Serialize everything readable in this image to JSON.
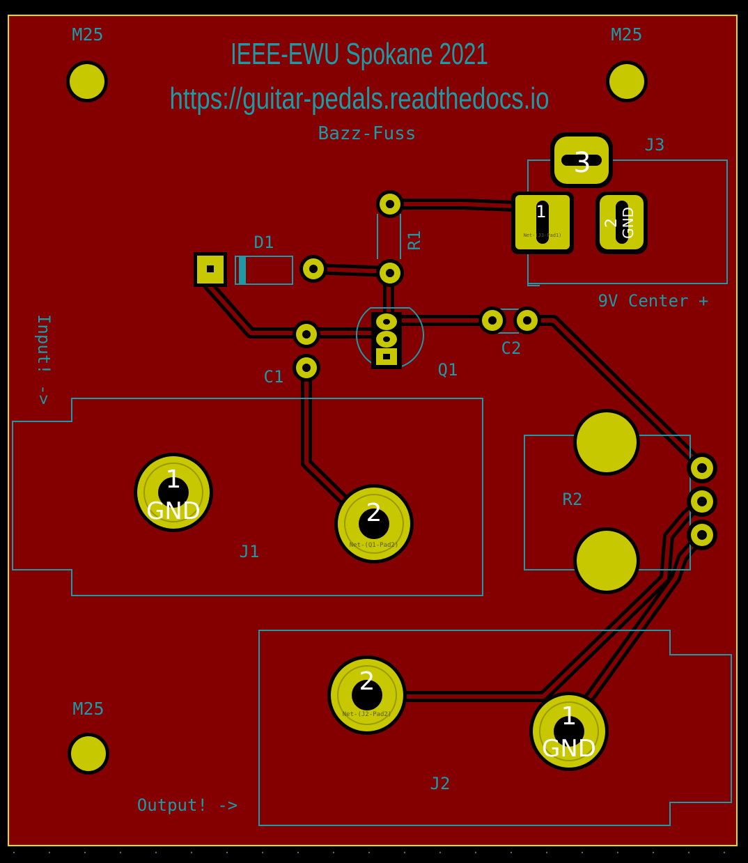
{
  "board": {
    "title": "IEEE-EWU Spokane 2021",
    "url": "https://guitar-pedals.readthedocs.io",
    "name": "Bazz-Fuss",
    "input_label": "Input! ->",
    "output_label": "Output! ->",
    "power_label": "9V Center +"
  },
  "refs": {
    "m25_tl": "M25",
    "m25_tr": "M25",
    "m25_bl": "M25",
    "d1": "D1",
    "r1": "R1",
    "r2": "R2",
    "j1": "J1",
    "j2": "J2",
    "j3": "J3",
    "c1": "C1",
    "c2": "C2",
    "q1": "Q1"
  },
  "pads": {
    "j1_1": "1",
    "j1_1_net": "GND",
    "j1_2": "2",
    "j1_2_net": "Net-(Q1-Pad2)",
    "j2_1": "1",
    "j2_1_net": "GND",
    "j2_2": "2",
    "j2_2_net": "Net-(J2-Pad2)",
    "j3_1": "1",
    "j3_1_net": "Net-(J3-Pad1)",
    "j3_2": "2",
    "j3_2_net": "GND",
    "j3_3": "3"
  },
  "colors": {
    "copper": "#840000",
    "silkscreen": "#1d9aa6",
    "pad": "#c8c800",
    "background": "#000000"
  }
}
